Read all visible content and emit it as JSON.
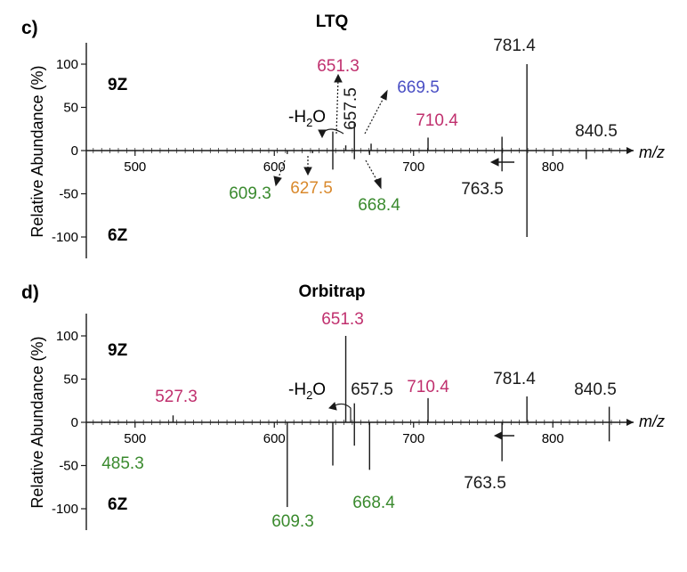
{
  "colors": {
    "black": "#1a1a1a",
    "magenta": "#c0306e",
    "blue": "#4a4fc4",
    "green": "#3a8a2e",
    "orange": "#d9892c"
  },
  "chart_data": [
    {
      "type": "bar",
      "panel": "c)",
      "title": "LTQ",
      "ylabel": "Relative Abundance (%)",
      "xlabel": "m/z",
      "ylim": [
        -125,
        125
      ],
      "xlim": [
        465,
        858
      ],
      "yticks": [
        100,
        50,
        0,
        -50,
        -100
      ],
      "xticks": [
        500,
        600,
        700,
        800
      ],
      "top_state": "9Z",
      "bottom_state": "6Z",
      "water_loss_label": "-H2O",
      "series": [
        {
          "name": "9Z",
          "peaks": [
            {
              "mz": 651.3,
              "value": 6,
              "label": "651.3",
              "color": "magenta"
            },
            {
              "mz": 657.5,
              "value": 33,
              "label": "657.5",
              "color": "black"
            },
            {
              "mz": 642.0,
              "value": 22,
              "label": "",
              "color": "black"
            },
            {
              "mz": 669.5,
              "value": 8,
              "label": "669.5",
              "color": "blue"
            },
            {
              "mz": 710.4,
              "value": 15,
              "label": "710.4",
              "color": "magenta"
            },
            {
              "mz": 763.5,
              "value": 16,
              "label": "",
              "color": "black"
            },
            {
              "mz": 781.4,
              "value": 100,
              "label": "781.4",
              "color": "black"
            },
            {
              "mz": 840.5,
              "value": 3,
              "label": "840.5",
              "color": "black"
            }
          ]
        },
        {
          "name": "6Z",
          "peaks": [
            {
              "mz": 609.3,
              "value": -4,
              "label": "609.3",
              "color": "green"
            },
            {
              "mz": 627.5,
              "value": -3,
              "label": "627.5",
              "color": "orange"
            },
            {
              "mz": 642.0,
              "value": -22,
              "label": "",
              "color": "black"
            },
            {
              "mz": 657.5,
              "value": -10,
              "label": "",
              "color": "black"
            },
            {
              "mz": 668.4,
              "value": -5,
              "label": "668.4",
              "color": "green"
            },
            {
              "mz": 763.5,
              "value": -24,
              "label": "763.5",
              "color": "black"
            },
            {
              "mz": 781.4,
              "value": -100,
              "label": "",
              "color": "black"
            },
            {
              "mz": 824.0,
              "value": -10,
              "label": "",
              "color": "black"
            }
          ]
        }
      ]
    },
    {
      "type": "bar",
      "panel": "d)",
      "title": "Orbitrap",
      "ylabel": "Relative Abundance (%)",
      "xlabel": "m/z",
      "ylim": [
        -125,
        125
      ],
      "xlim": [
        465,
        858
      ],
      "yticks": [
        100,
        50,
        0,
        -50,
        -100
      ],
      "xticks": [
        500,
        600,
        700,
        800
      ],
      "top_state": "9Z",
      "bottom_state": "6Z",
      "water_loss_label": "-H2O",
      "series": [
        {
          "name": "9Z",
          "peaks": [
            {
              "mz": 527.3,
              "value": 8,
              "label": "527.3",
              "color": "magenta"
            },
            {
              "mz": 651.3,
              "value": 100,
              "label": "651.3",
              "color": "magenta"
            },
            {
              "mz": 657.5,
              "value": 22,
              "label": "657.5",
              "color": "black"
            },
            {
              "mz": 710.4,
              "value": 28,
              "label": "710.4",
              "color": "magenta"
            },
            {
              "mz": 781.4,
              "value": 30,
              "label": "781.4",
              "color": "black"
            },
            {
              "mz": 840.5,
              "value": 18,
              "label": "840.5",
              "color": "black"
            }
          ]
        },
        {
          "name": "6Z",
          "peaks": [
            {
              "mz": 485.3,
              "value": -1,
              "label": "485.3",
              "color": "green"
            },
            {
              "mz": 609.3,
              "value": -98,
              "label": "609.3",
              "color": "green"
            },
            {
              "mz": 642.0,
              "value": -50,
              "label": "",
              "color": "black"
            },
            {
              "mz": 657.5,
              "value": -27,
              "label": "",
              "color": "black"
            },
            {
              "mz": 668.4,
              "value": -55,
              "label": "668.4",
              "color": "green"
            },
            {
              "mz": 763.5,
              "value": -45,
              "label": "763.5",
              "color": "black"
            },
            {
              "mz": 840.5,
              "value": -22,
              "label": "",
              "color": "black"
            }
          ]
        }
      ]
    }
  ]
}
